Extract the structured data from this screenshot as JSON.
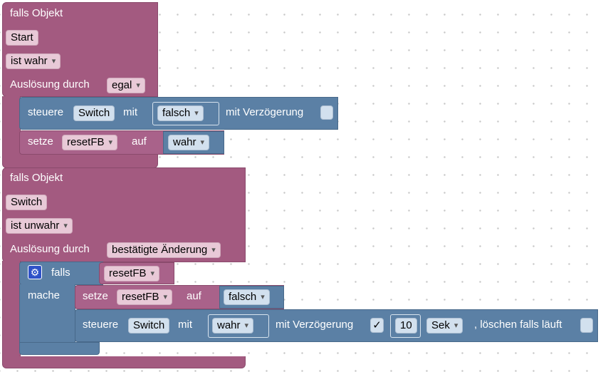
{
  "block1": {
    "header": "falls Objekt",
    "object": "Start",
    "condition": "ist wahr",
    "trigger_label": "Auslösung durch",
    "trigger_value": "egal",
    "control": {
      "label": "steuere",
      "target": "Switch",
      "with": "mit",
      "value": "falsch",
      "delay_label": "mit Verzögerung"
    },
    "set": {
      "label": "setze",
      "variable": "resetFB",
      "on": "auf",
      "value": "wahr"
    }
  },
  "block2": {
    "header": "falls Objekt",
    "object": "Switch",
    "condition": "ist unwahr",
    "trigger_label": "Auslösung durch",
    "trigger_value": "bestätigte Änderung",
    "if_block": {
      "if_label": "falls",
      "condition_var": "resetFB",
      "do_label": "mache",
      "set": {
        "label": "setze",
        "variable": "resetFB",
        "on": "auf",
        "value": "falsch"
      },
      "control": {
        "label": "steuere",
        "target": "Switch",
        "with": "mit",
        "value": "wahr",
        "delay_label": "mit Verzögerung",
        "delay_check": "✓",
        "delay_value": "10",
        "delay_unit": "Sek",
        "clear_label": ", löschen falls läuft"
      }
    }
  },
  "colors": {
    "trigger_block": "#a35a80",
    "variable_block": "#a9628a",
    "control_block": "#5b80a5",
    "workspace_dots": "#c8c8c8",
    "gear_icon": "#2f52c8"
  },
  "icons": {
    "if_settings": "gear-icon"
  }
}
